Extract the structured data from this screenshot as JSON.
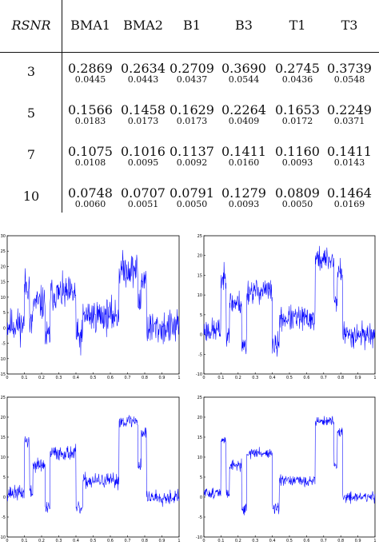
{
  "table": {
    "corner": "RSNR",
    "methods": [
      "BMA1",
      "BMA2",
      "B1",
      "B3",
      "T1",
      "T3"
    ],
    "rows": [
      {
        "rsnr": "3",
        "means": [
          "0.2869",
          "0.2634",
          "0.2709",
          "0.3690",
          "0.2745",
          "0.3739"
        ],
        "stds": [
          "0.0445",
          "0.0443",
          "0.0437",
          "0.0544",
          "0.0436",
          "0.0548"
        ]
      },
      {
        "rsnr": "5",
        "means": [
          "0.1566",
          "0.1458",
          "0.1629",
          "0.2264",
          "0.1653",
          "0.2249"
        ],
        "stds": [
          "0.0183",
          "0.0173",
          "0.0173",
          "0.0409",
          "0.0172",
          "0.0371"
        ]
      },
      {
        "rsnr": "7",
        "means": [
          "0.1075",
          "0.1016",
          "0.1137",
          "0.1411",
          "0.1160",
          "0.1411"
        ],
        "stds": [
          "0.0108",
          "0.0095",
          "0.0092",
          "0.0160",
          "0.0093",
          "0.0143"
        ]
      },
      {
        "rsnr": "10",
        "means": [
          "0.0748",
          "0.0707",
          "0.0791",
          "0.1279",
          "0.0809",
          "0.1464"
        ],
        "stds": [
          "0.0060",
          "0.0051",
          "0.0050",
          "0.0093",
          "0.0050",
          "0.0169"
        ]
      }
    ]
  },
  "plots": {
    "line_color": "#0000ff",
    "x_ticks": [
      "0",
      "0.1",
      "0.2",
      "0.3",
      "0.4",
      "0.5",
      "0.6",
      "0.7",
      "0.8",
      "0.9",
      "1"
    ],
    "panels": [
      {
        "id": "top-left",
        "y_ticks": [
          "30",
          "25",
          "20",
          "15",
          "10",
          "5",
          "0",
          "-5",
          "-10",
          "-15"
        ],
        "y_range": [
          -15,
          30
        ],
        "noise": 4.5,
        "seed": 11
      },
      {
        "id": "top-right",
        "y_ticks": [
          "25",
          "20",
          "15",
          "10",
          "5",
          "0",
          "-5",
          "-10"
        ],
        "y_range": [
          -10,
          25
        ],
        "noise": 2.6,
        "seed": 23
      },
      {
        "id": "bottom-left",
        "y_ticks": [
          "25",
          "20",
          "15",
          "10",
          "5",
          "0",
          "-5",
          "-10"
        ],
        "y_range": [
          -10,
          25
        ],
        "noise": 1.5,
        "seed": 37
      },
      {
        "id": "bottom-right",
        "y_ticks": [
          "25",
          "20",
          "15",
          "10",
          "5",
          "0",
          "-5",
          "-10"
        ],
        "y_range": [
          -10,
          25
        ],
        "noise": 1.1,
        "seed": 51
      }
    ]
  }
}
